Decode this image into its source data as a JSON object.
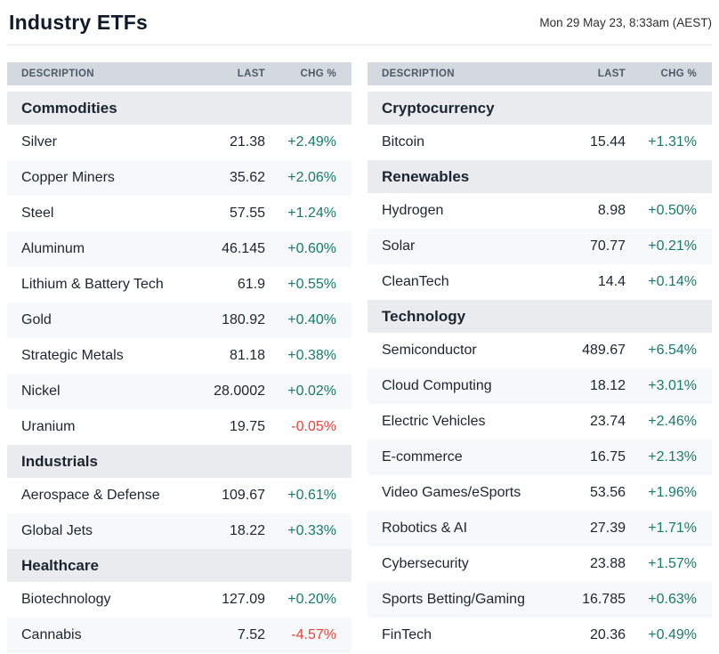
{
  "header": {
    "title": "Industry ETFs",
    "timestamp": "Mon 29 May 23, 8:33am (AEST)"
  },
  "columns": {
    "description": "DESCRIPTION",
    "last": "LAST",
    "chg": "CHG %"
  },
  "colors": {
    "positive": "#17796d",
    "negative": "#ee4137",
    "header_bg": "#d3d9df",
    "section_bg": "#e9ebee",
    "stripe_bg": "#f7f8f9",
    "text_dark": "#1b2530",
    "header_text": "#4d5a68"
  },
  "tables": [
    {
      "sections": [
        {
          "name": "Commodities",
          "rows": [
            {
              "description": "Silver",
              "last": "21.38",
              "chg": "+2.49%"
            },
            {
              "description": "Copper Miners",
              "last": "35.62",
              "chg": "+2.06%"
            },
            {
              "description": "Steel",
              "last": "57.55",
              "chg": "+1.24%"
            },
            {
              "description": "Aluminum",
              "last": "46.145",
              "chg": "+0.60%"
            },
            {
              "description": "Lithium & Battery Tech",
              "last": "61.9",
              "chg": "+0.55%"
            },
            {
              "description": "Gold",
              "last": "180.92",
              "chg": "+0.40%"
            },
            {
              "description": "Strategic Metals",
              "last": "81.18",
              "chg": "+0.38%"
            },
            {
              "description": "Nickel",
              "last": "28.0002",
              "chg": "+0.02%"
            },
            {
              "description": "Uranium",
              "last": "19.75",
              "chg": "-0.05%"
            }
          ]
        },
        {
          "name": "Industrials",
          "rows": [
            {
              "description": "Aerospace & Defense",
              "last": "109.67",
              "chg": "+0.61%"
            },
            {
              "description": "Global Jets",
              "last": "18.22",
              "chg": "+0.33%"
            }
          ]
        },
        {
          "name": "Healthcare",
          "rows": [
            {
              "description": "Biotechnology",
              "last": "127.09",
              "chg": "+0.20%"
            },
            {
              "description": "Cannabis",
              "last": "7.52",
              "chg": "-4.57%"
            }
          ]
        }
      ]
    },
    {
      "sections": [
        {
          "name": "Cryptocurrency",
          "rows": [
            {
              "description": "Bitcoin",
              "last": "15.44",
              "chg": "+1.31%"
            }
          ]
        },
        {
          "name": "Renewables",
          "rows": [
            {
              "description": "Hydrogen",
              "last": "8.98",
              "chg": "+0.50%"
            },
            {
              "description": "Solar",
              "last": "70.77",
              "chg": "+0.21%"
            },
            {
              "description": "CleanTech",
              "last": "14.4",
              "chg": "+0.14%"
            }
          ]
        },
        {
          "name": "Technology",
          "rows": [
            {
              "description": "Semiconductor",
              "last": "489.67",
              "chg": "+6.54%"
            },
            {
              "description": "Cloud Computing",
              "last": "18.12",
              "chg": "+3.01%"
            },
            {
              "description": "Electric Vehicles",
              "last": "23.74",
              "chg": "+2.46%"
            },
            {
              "description": "E-commerce",
              "last": "16.75",
              "chg": "+2.13%"
            },
            {
              "description": "Video Games/eSports",
              "last": "53.56",
              "chg": "+1.96%"
            },
            {
              "description": "Robotics & AI",
              "last": "27.39",
              "chg": "+1.71%"
            },
            {
              "description": "Cybersecurity",
              "last": "23.88",
              "chg": "+1.57%"
            },
            {
              "description": "Sports Betting/Gaming",
              "last": "16.785",
              "chg": "+0.63%"
            },
            {
              "description": "FinTech",
              "last": "20.36",
              "chg": "+0.49%"
            }
          ]
        }
      ]
    }
  ]
}
